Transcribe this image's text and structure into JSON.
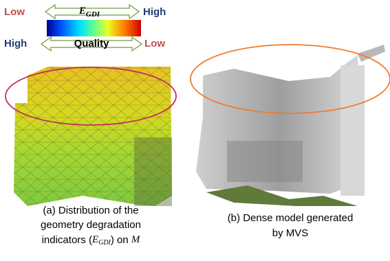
{
  "legend": {
    "top_left": "Low",
    "top_symbol": "E",
    "top_subscript": "GDI",
    "top_right": "High",
    "bottom_left": "High",
    "bottom_middle": "Quality",
    "bottom_right": "Low"
  },
  "caption_a": {
    "lines": [
      "(a) Distribution of the",
      "geometry degradation"
    ],
    "last_before": "indicators (",
    "last_symbol": "E",
    "last_subscript": "GDI",
    "last_middle": ") on ",
    "last_variable": "M"
  },
  "caption_b": {
    "lines": [
      "(b) Dense model generated",
      "by MVS"
    ]
  }
}
